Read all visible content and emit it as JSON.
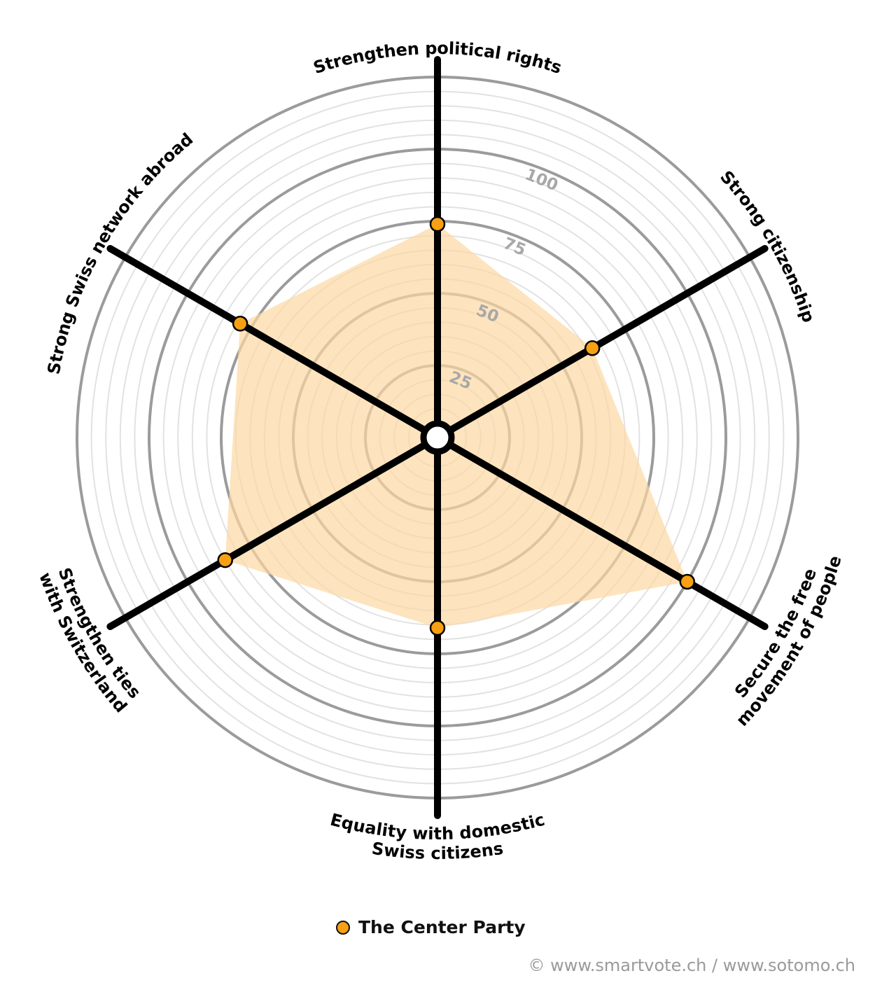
{
  "chart_data": {
    "type": "radar",
    "axes": [
      "Strengthen political rights",
      "Strong citizenship",
      "Secure the free movement of people",
      "Equality with domestic Swiss citizens",
      "Strengthen ties with Switzerland",
      "Strong Swiss network abroad"
    ],
    "axis_label_lines": [
      [
        "Strengthen political rights"
      ],
      [
        "Strong citizenship"
      ],
      [
        "Secure the free",
        "movement of people"
      ],
      [
        "Equality with domestic",
        "Swiss citizens"
      ],
      [
        "Strengthen ties",
        "with Switzerland"
      ],
      [
        "Strong Swiss network abroad"
      ]
    ],
    "series": [
      {
        "name": "The Center Party",
        "values": [
          74,
          62,
          100,
          66,
          85,
          79
        ]
      }
    ],
    "rmax": 125,
    "ticks": [
      25,
      50,
      75,
      100
    ],
    "tick_labels": [
      "25",
      "50",
      "75",
      "100"
    ],
    "fill_color": "#fcd9a3",
    "marker_color": "#f7a013",
    "grid": true
  },
  "legend": {
    "label": "The Center Party",
    "color": "#f7a013"
  },
  "credit": "© www.smartvote.ch / www.sotomo.ch"
}
